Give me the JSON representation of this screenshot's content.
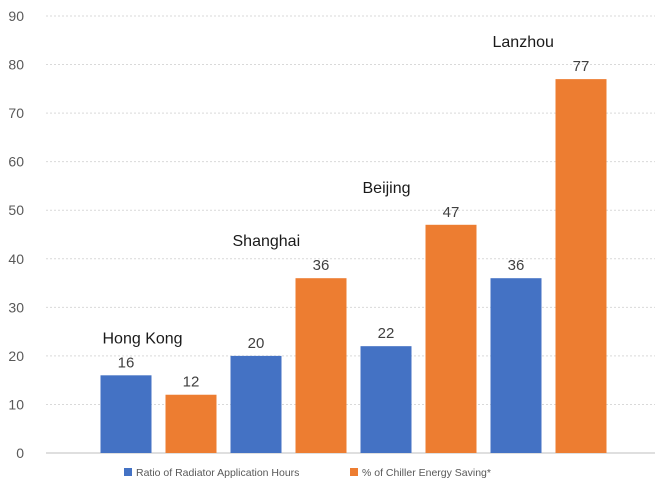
{
  "chart_data": {
    "type": "bar",
    "categories": [
      "Hong Kong",
      "Shanghai",
      "Beijing",
      "Lanzhou"
    ],
    "series": [
      {
        "name": "Ratio of Radiator Application Hours",
        "values": [
          16,
          20,
          22,
          36
        ],
        "color": "#4472C4"
      },
      {
        "name": "% of Chiller Energy Saving*",
        "values": [
          12,
          36,
          47,
          77
        ],
        "color": "#ED7D31"
      }
    ],
    "value_labels": true,
    "ylim": [
      0,
      90
    ],
    "yticks": [
      0,
      10,
      20,
      30,
      40,
      50,
      60,
      70,
      80,
      90
    ],
    "grid": "horizontal",
    "legend_position": "bottom",
    "title": "",
    "xlabel": "",
    "ylabel": ""
  }
}
